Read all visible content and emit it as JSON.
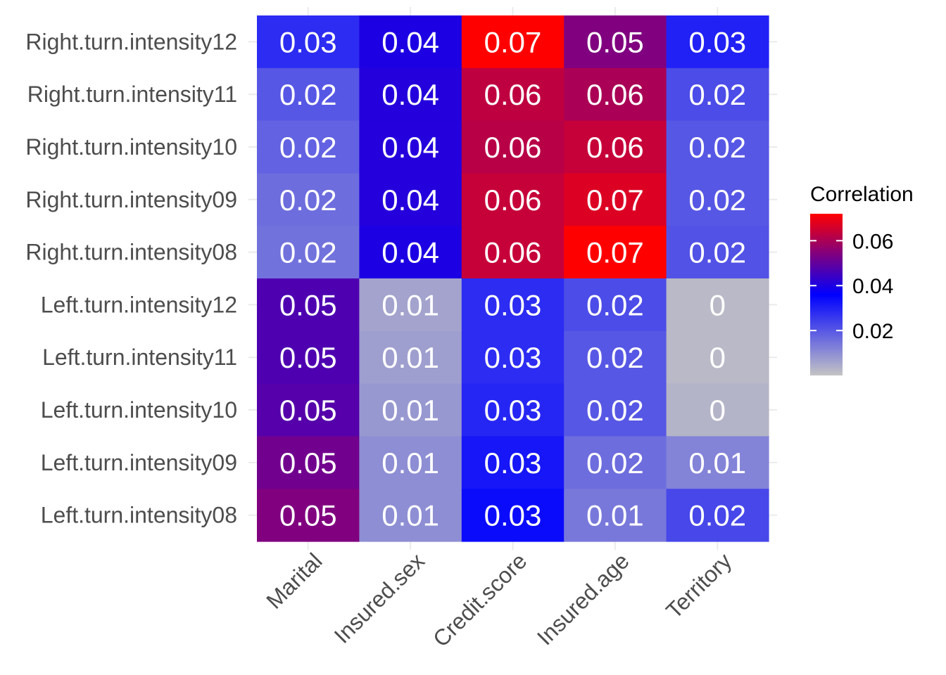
{
  "chart_data": {
    "type": "heatmap",
    "title": "",
    "xlabel": "",
    "ylabel": "",
    "x_categories": [
      "Marital",
      "Insured.sex",
      "Credit.score",
      "Insured.age",
      "Territory"
    ],
    "y_categories": [
      "Right.turn.intensity12",
      "Right.turn.intensity11",
      "Right.turn.intensity10",
      "Right.turn.intensity09",
      "Right.turn.intensity08",
      "Left.turn.intensity12",
      "Left.turn.intensity11",
      "Left.turn.intensity10",
      "Left.turn.intensity09",
      "Left.turn.intensity08"
    ],
    "values": [
      [
        0.028,
        0.04,
        0.072,
        0.054,
        0.03
      ],
      [
        0.02,
        0.041,
        0.063,
        0.06,
        0.022
      ],
      [
        0.018,
        0.041,
        0.062,
        0.064,
        0.02
      ],
      [
        0.016,
        0.041,
        0.064,
        0.067,
        0.02
      ],
      [
        0.015,
        0.04,
        0.064,
        0.072,
        0.021
      ],
      [
        0.047,
        0.006,
        0.028,
        0.022,
        0.002
      ],
      [
        0.047,
        0.007,
        0.028,
        0.02,
        0.002
      ],
      [
        0.048,
        0.008,
        0.029,
        0.02,
        0.003
      ],
      [
        0.052,
        0.01,
        0.032,
        0.016,
        0.012
      ],
      [
        0.054,
        0.01,
        0.034,
        0.014,
        0.023
      ]
    ],
    "labels": [
      [
        "0.03",
        "0.04",
        "0.07",
        "0.05",
        "0.03"
      ],
      [
        "0.02",
        "0.04",
        "0.06",
        "0.06",
        "0.02"
      ],
      [
        "0.02",
        "0.04",
        "0.06",
        "0.06",
        "0.02"
      ],
      [
        "0.02",
        "0.04",
        "0.06",
        "0.07",
        "0.02"
      ],
      [
        "0.02",
        "0.04",
        "0.06",
        "0.07",
        "0.02"
      ],
      [
        "0.05",
        "0.01",
        "0.03",
        "0.02",
        "0"
      ],
      [
        "0.05",
        "0.01",
        "0.03",
        "0.02",
        "0"
      ],
      [
        "0.05",
        "0.01",
        "0.03",
        "0.02",
        "0"
      ],
      [
        "0.05",
        "0.01",
        "0.03",
        "0.02",
        "0.01"
      ],
      [
        "0.05",
        "0.01",
        "0.03",
        "0.01",
        "0.02"
      ]
    ],
    "color_scale": {
      "low": "#c4c4c4",
      "mid": "#0000ff",
      "high": "#ff0000",
      "low_value": 0.0,
      "mid_value": 0.036,
      "high_value": 0.072
    },
    "legend": {
      "title": "Correlation",
      "position": "right",
      "ticks": [
        "0.02",
        "0.04",
        "0.06"
      ],
      "tick_values": [
        0.02,
        0.04,
        0.06
      ]
    },
    "grid": true
  }
}
